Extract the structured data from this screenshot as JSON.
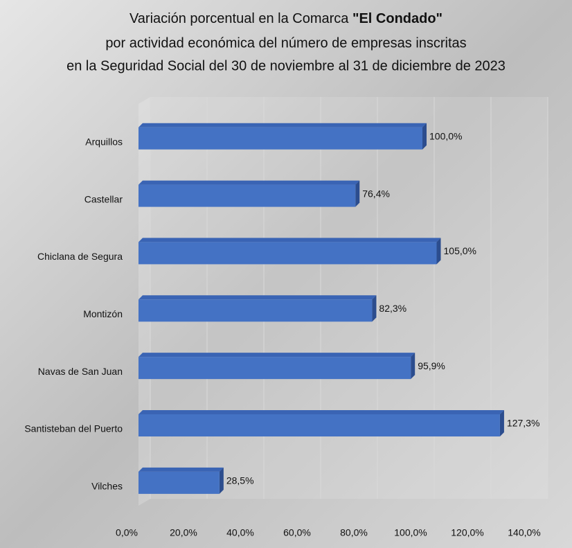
{
  "chart_data": {
    "type": "bar",
    "orientation": "horizontal",
    "title": [
      "Variación porcentual en la Comarca",
      "\"El Condado\"",
      "por actividad económica del número de empresas inscritas",
      "en la Seguridad Social del 30 de noviembre al 31 de diciembre de 2023"
    ],
    "categories": [
      "Arquillos",
      "Castellar",
      "Chiclana de Segura",
      "Montizón",
      "Navas de San Juan",
      "Santisteban del Puerto",
      "Vilches"
    ],
    "values": [
      100.0,
      76.4,
      105.0,
      82.3,
      95.9,
      127.3,
      28.5
    ],
    "value_labels": [
      "100,0%",
      "76,4%",
      "105,0%",
      "82,3%",
      "95,9%",
      "127,3%",
      "28,5%"
    ],
    "color": "#4472c4",
    "xlim": [
      0,
      140
    ],
    "xticks": [
      {
        "value": 0,
        "label": "0,0%"
      },
      {
        "value": 20,
        "label": "20,0%"
      },
      {
        "value": 40,
        "label": "40,0%"
      },
      {
        "value": 60,
        "label": "60,0%"
      },
      {
        "value": 80,
        "label": "80,0%"
      },
      {
        "value": 100,
        "label": "100,0%"
      },
      {
        "value": 120,
        "label": "120,0%"
      },
      {
        "value": 140,
        "label": "140,0%"
      }
    ],
    "grid": true
  }
}
